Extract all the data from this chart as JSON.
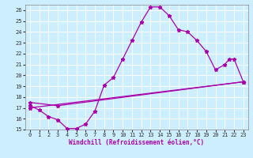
{
  "xlabel": "Windchill (Refroidissement éolien,°C)",
  "xlim": [
    -0.5,
    23.5
  ],
  "ylim": [
    15,
    26.5
  ],
  "xticks": [
    0,
    1,
    2,
    3,
    4,
    5,
    6,
    7,
    8,
    9,
    10,
    11,
    12,
    13,
    14,
    15,
    16,
    17,
    18,
    19,
    20,
    21,
    22,
    23
  ],
  "yticks": [
    15,
    16,
    17,
    18,
    19,
    20,
    21,
    22,
    23,
    24,
    25,
    26
  ],
  "bg_color": "#cceeff",
  "line_color": "#aa00aa",
  "grid_color": "#ffffff",
  "series1_x": [
    0,
    1,
    2,
    3,
    4,
    5,
    6,
    7,
    8,
    9,
    10,
    11,
    12,
    13,
    14,
    15,
    16,
    17,
    18,
    19,
    20,
    21,
    21.5,
    22,
    23
  ],
  "series1_y": [
    17.2,
    16.8,
    16.2,
    15.9,
    15.1,
    15.1,
    15.5,
    16.7,
    19.1,
    19.8,
    21.5,
    23.2,
    24.9,
    26.3,
    26.3,
    25.5,
    24.2,
    24.0,
    23.2,
    22.2,
    20.5,
    21.0,
    21.5,
    21.5,
    19.4
  ],
  "series2_x": [
    0,
    23
  ],
  "series2_y": [
    17.0,
    19.4
  ],
  "series3_x": [
    0,
    3,
    23
  ],
  "series3_y": [
    17.5,
    17.2,
    19.4
  ],
  "marker": "*",
  "markersize": 3.5,
  "linewidth": 0.9,
  "tick_fontsize": 5,
  "xlabel_fontsize": 5.5
}
